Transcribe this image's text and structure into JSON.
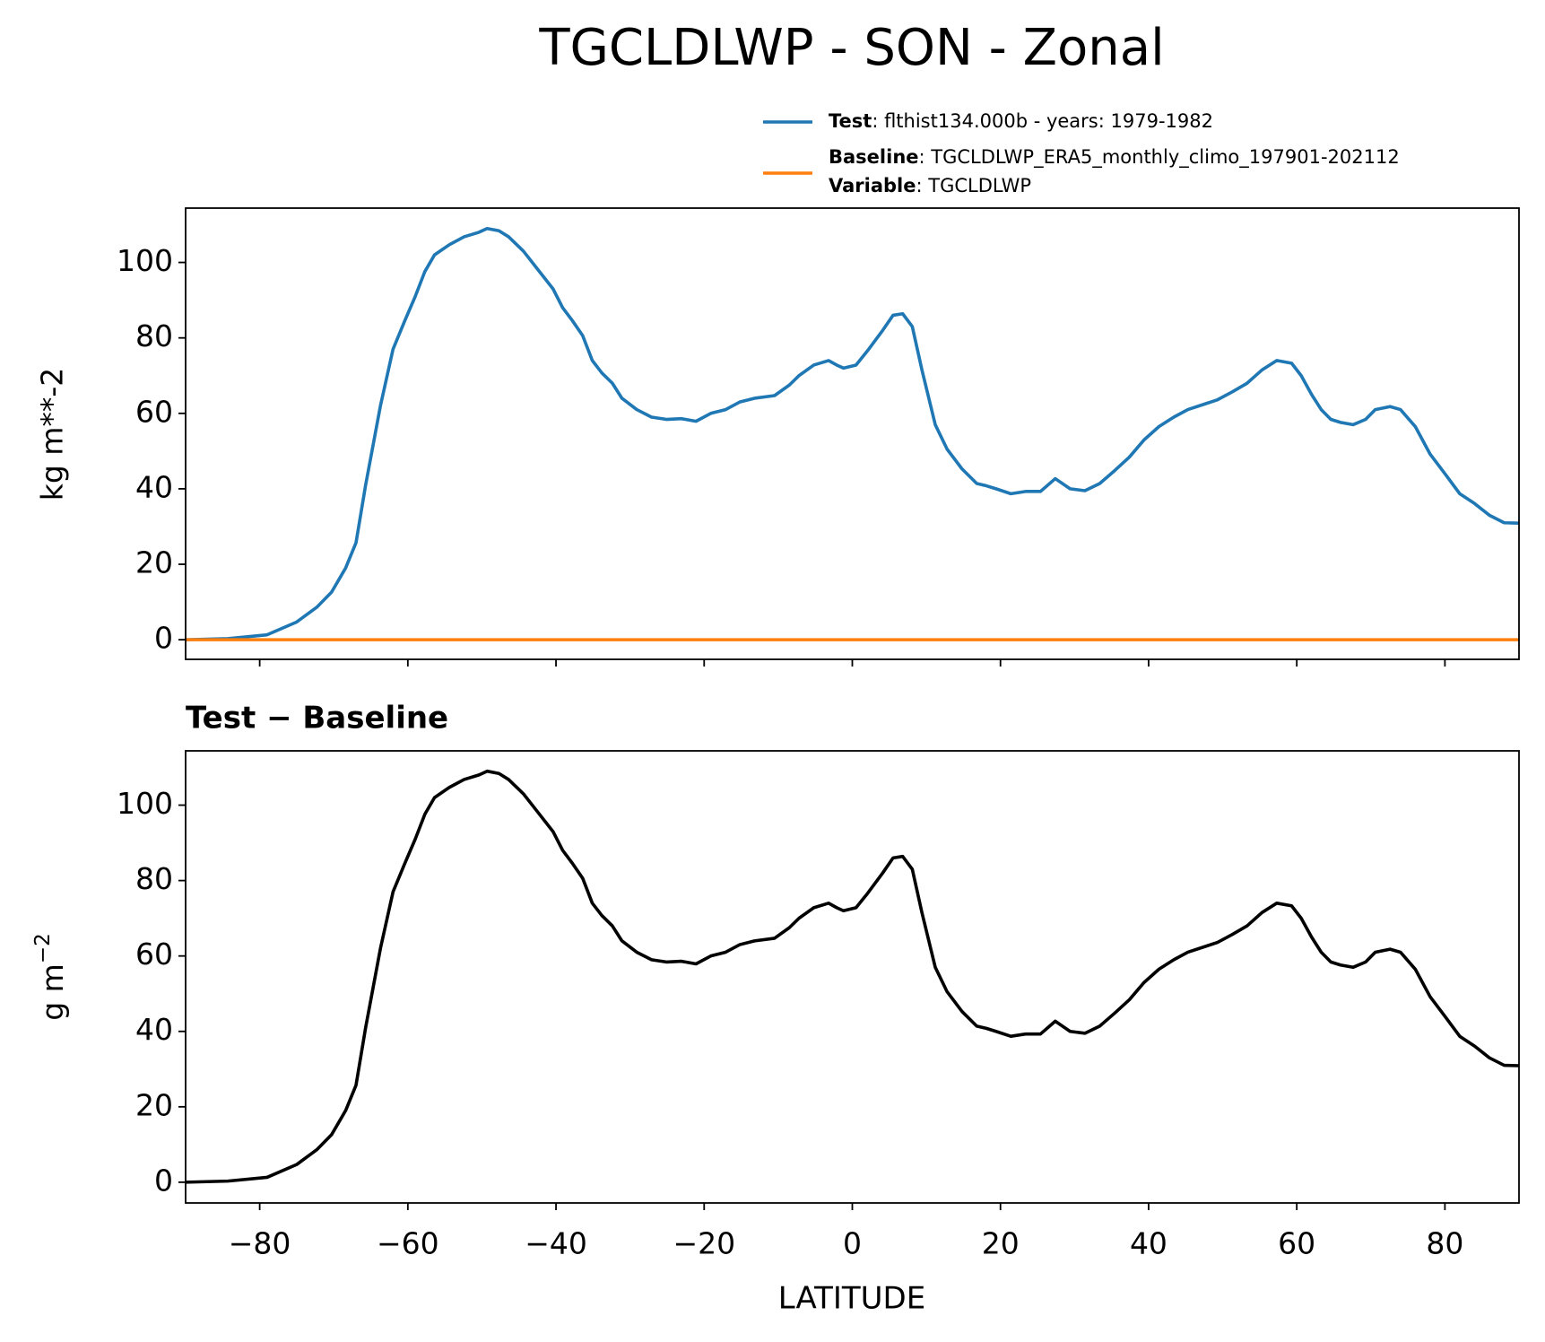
{
  "chart_data": [
    {
      "type": "line",
      "title": "TGCLDLWP - SON - Zonal",
      "ylabel": "kg m**-2",
      "xlim": [
        -90,
        90
      ],
      "ylim": [
        -5.2,
        114.4
      ],
      "xticks": [
        -80,
        -60,
        -40,
        -20,
        0,
        20,
        40,
        60,
        80
      ],
      "xtick_labels": false,
      "yticks": [
        0,
        20,
        40,
        60,
        80,
        100
      ],
      "x": [
        -90,
        -84.3,
        -79,
        -75,
        -72.3,
        -70.3,
        -68.4,
        -67,
        -65.7,
        -63.7,
        -62,
        -60.4,
        -59,
        -57.7,
        -56.4,
        -54.4,
        -52.4,
        -50.4,
        -49.3,
        -47.7,
        -46.4,
        -44.4,
        -42.4,
        -40.4,
        -39.1,
        -37.8,
        -36.4,
        -35.1,
        -33.8,
        -32.4,
        -31.1,
        -29.1,
        -27.1,
        -25.1,
        -23.1,
        -21.1,
        -19.1,
        -17.1,
        -15.2,
        -13.2,
        -10.5,
        -8.5,
        -7.2,
        -5.2,
        -3.2,
        -2.1,
        -1.2,
        0.5,
        2.1,
        4.1,
        5.5,
        6.8,
        8.1,
        9.4,
        11.2,
        12.8,
        14.8,
        16.8,
        18.1,
        19.4,
        21.4,
        23.4,
        25.4,
        27.4,
        29.4,
        31.4,
        33.4,
        35.4,
        37.4,
        39.4,
        41.4,
        43.4,
        45.3,
        47.3,
        49.3,
        51.3,
        53.3,
        55.3,
        57.3,
        59.3,
        60.6,
        62,
        63.3,
        64.6,
        65.9,
        67.6,
        69.3,
        70.6,
        72.6,
        74,
        76,
        78,
        80,
        82,
        84,
        86,
        88,
        90
      ],
      "series": [
        {
          "name": "Test",
          "detail": ": flthist134.000b - years: 1979-1982",
          "color": "#1f77b4",
          "values": [
            0,
            0.3,
            1.3,
            4.7,
            8.6,
            12.6,
            19,
            25.7,
            41,
            62,
            77,
            84.6,
            91,
            97.6,
            102,
            104.7,
            106.8,
            108,
            109,
            108.4,
            106.8,
            103,
            98,
            93,
            88,
            84.6,
            80.6,
            74,
            70.7,
            68,
            64,
            61,
            59,
            58.4,
            58.6,
            57.9,
            60,
            61,
            63,
            64,
            64.7,
            67.5,
            70,
            72.8,
            74,
            72.8,
            72,
            72.8,
            76.7,
            82,
            86,
            86.4,
            83,
            71.5,
            57,
            50.5,
            45.3,
            41.4,
            40.8,
            40,
            38.7,
            39.3,
            39.3,
            42.7,
            40,
            39.5,
            41.4,
            44.8,
            48.4,
            53,
            56.5,
            59,
            61,
            62.3,
            63.6,
            65.7,
            68,
            71.5,
            74,
            73.3,
            70,
            65,
            61,
            58.4,
            57.6,
            57,
            58.4,
            61,
            61.8,
            61,
            56.5,
            49.2,
            44,
            38.7,
            36.1,
            33,
            31,
            30.9
          ]
        },
        {
          "name": "Baseline",
          "detail": ": TGCLDLWP_ERA5_monthly_climo_197901-202112",
          "color": "#ff7f0e",
          "values": [
            0,
            0,
            0,
            0,
            0,
            0,
            0,
            0,
            0,
            0,
            0,
            0,
            0,
            0,
            0,
            0,
            0,
            0,
            0,
            0,
            0,
            0,
            0,
            0,
            0,
            0,
            0,
            0,
            0,
            0,
            0,
            0,
            0,
            0,
            0,
            0,
            0,
            0,
            0,
            0,
            0,
            0,
            0,
            0,
            0,
            0,
            0,
            0,
            0,
            0,
            0,
            0,
            0,
            0,
            0,
            0,
            0,
            0,
            0,
            0,
            0,
            0,
            0,
            0,
            0,
            0,
            0,
            0,
            0,
            0,
            0,
            0,
            0,
            0,
            0,
            0,
            0,
            0,
            0,
            0,
            0,
            0,
            0,
            0,
            0,
            0,
            0,
            0,
            0,
            0,
            0,
            0,
            0,
            0,
            0,
            0,
            0,
            0
          ]
        }
      ],
      "legend_note": {
        "name": "Variable",
        "detail": ": TGCLDLWP"
      }
    },
    {
      "type": "line",
      "title": "Test − Baseline",
      "ylabel": "g m",
      "ylabel_sup": "−2",
      "xlabel": "LATITUDE",
      "xlim": [
        -90,
        90
      ],
      "ylim": [
        -5.5,
        114.4
      ],
      "xticks": [
        {
          "value": -80,
          "label": "−80"
        },
        {
          "value": -60,
          "label": "−60"
        },
        {
          "value": -40,
          "label": "−40"
        },
        {
          "value": -20,
          "label": "−20"
        },
        0,
        20,
        40,
        60,
        80
      ],
      "xtick_labels": true,
      "yticks": [
        0,
        20,
        40,
        60,
        80,
        100
      ],
      "x": [
        -90,
        -84.3,
        -79,
        -75,
        -72.3,
        -70.3,
        -68.4,
        -67,
        -65.7,
        -63.7,
        -62,
        -60.4,
        -59,
        -57.7,
        -56.4,
        -54.4,
        -52.4,
        -50.4,
        -49.3,
        -47.7,
        -46.4,
        -44.4,
        -42.4,
        -40.4,
        -39.1,
        -37.8,
        -36.4,
        -35.1,
        -33.8,
        -32.4,
        -31.1,
        -29.1,
        -27.1,
        -25.1,
        -23.1,
        -21.1,
        -19.1,
        -17.1,
        -15.2,
        -13.2,
        -10.5,
        -8.5,
        -7.2,
        -5.2,
        -3.2,
        -2.1,
        -1.2,
        0.5,
        2.1,
        4.1,
        5.5,
        6.8,
        8.1,
        9.4,
        11.2,
        12.8,
        14.8,
        16.8,
        18.1,
        19.4,
        21.4,
        23.4,
        25.4,
        27.4,
        29.4,
        31.4,
        33.4,
        35.4,
        37.4,
        39.4,
        41.4,
        43.4,
        45.3,
        47.3,
        49.3,
        51.3,
        53.3,
        55.3,
        57.3,
        59.3,
        60.6,
        62,
        63.3,
        64.6,
        65.9,
        67.6,
        69.3,
        70.6,
        72.6,
        74,
        76,
        78,
        80,
        82,
        84,
        86,
        88,
        90
      ],
      "series": [
        {
          "color": "#000000",
          "values": [
            0,
            0.3,
            1.3,
            4.7,
            8.6,
            12.6,
            19,
            25.7,
            41,
            62,
            77,
            84.6,
            91,
            97.6,
            102,
            104.7,
            106.8,
            108,
            109,
            108.4,
            106.8,
            103,
            98,
            93,
            88,
            84.6,
            80.6,
            74,
            70.7,
            68,
            64,
            61,
            59,
            58.4,
            58.6,
            57.9,
            60,
            61,
            63,
            64,
            64.7,
            67.5,
            70,
            72.8,
            74,
            72.8,
            72,
            72.8,
            76.7,
            82,
            86,
            86.4,
            83,
            71.5,
            57,
            50.5,
            45.3,
            41.4,
            40.8,
            40,
            38.7,
            39.3,
            39.3,
            42.7,
            40,
            39.5,
            41.4,
            44.8,
            48.4,
            53,
            56.5,
            59,
            61,
            62.3,
            63.6,
            65.7,
            68,
            71.5,
            74,
            73.3,
            70,
            65,
            61,
            58.4,
            57.6,
            57,
            58.4,
            61,
            61.8,
            61,
            56.5,
            49.2,
            44,
            38.7,
            36.1,
            33,
            31,
            30.9
          ]
        }
      ]
    }
  ]
}
